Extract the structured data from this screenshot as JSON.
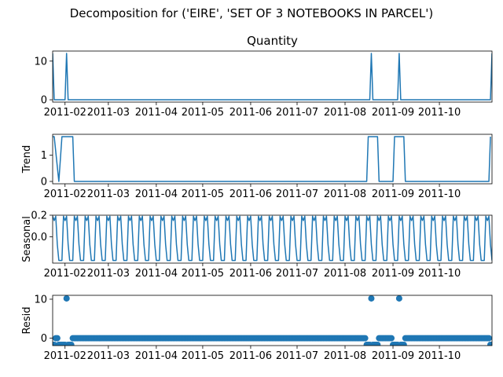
{
  "figure": {
    "suptitle": "Decomposition for ('EIRE', 'SET OF 3 NOTEBOOKS IN PARCEL')",
    "line_color": "#1f77b4"
  },
  "chart_data": [
    {
      "type": "line",
      "title": "Quantity",
      "ylabel": "",
      "xlim": [
        "2011-01-24",
        "2011-11-04"
      ],
      "ylim": [
        -0.6,
        12.6
      ],
      "yticks": [
        0,
        10
      ],
      "xticks": [
        "2011-02",
        "2011-03",
        "2011-04",
        "2011-05",
        "2011-06",
        "2011-07",
        "2011-08",
        "2011-09",
        "2011-10"
      ],
      "series": [
        {
          "points": [
            [
              "2011-01-24",
              12
            ],
            [
              "2011-01-25",
              0
            ],
            [
              "2011-02-01",
              0
            ],
            [
              "2011-02-02",
              12
            ],
            [
              "2011-02-03",
              0
            ],
            [
              "2011-08-17",
              0
            ],
            [
              "2011-08-18",
              12
            ],
            [
              "2011-08-19",
              0
            ],
            [
              "2011-09-04",
              0
            ],
            [
              "2011-09-05",
              12
            ],
            [
              "2011-09-06",
              0
            ],
            [
              "2011-11-03",
              0
            ],
            [
              "2011-11-04",
              12
            ]
          ]
        }
      ]
    },
    {
      "type": "line",
      "title": "",
      "ylabel": "Trend",
      "xlim": [
        "2011-01-24",
        "2011-11-04"
      ],
      "ylim": [
        -0.09,
        1.8
      ],
      "yticks": [
        0,
        1
      ],
      "xticks": [
        "2011-02",
        "2011-03",
        "2011-04",
        "2011-05",
        "2011-06",
        "2011-07",
        "2011-08",
        "2011-09",
        "2011-10"
      ],
      "series": [
        {
          "points": [
            [
              "2011-01-24",
              1.71
            ],
            [
              "2011-01-25",
              1.71
            ],
            [
              "2011-01-28",
              0
            ],
            [
              "2011-01-30",
              1.71
            ],
            [
              "2011-02-06",
              1.71
            ],
            [
              "2011-02-07",
              0
            ],
            [
              "2011-08-15",
              0
            ],
            [
              "2011-08-16",
              1.71
            ],
            [
              "2011-08-22",
              1.71
            ],
            [
              "2011-08-23",
              0
            ],
            [
              "2011-09-01",
              0
            ],
            [
              "2011-09-02",
              1.71
            ],
            [
              "2011-09-08",
              1.71
            ],
            [
              "2011-09-09",
              0
            ],
            [
              "2011-11-02",
              0
            ],
            [
              "2011-11-03",
              1.71
            ]
          ]
        }
      ]
    },
    {
      "type": "line",
      "title": "",
      "ylabel": "Seasonal",
      "xlim": [
        "2011-01-24",
        "2011-11-04"
      ],
      "ylim": [
        -0.245,
        0.2
      ],
      "yticks": [
        0.0,
        0.2
      ],
      "ytick_labels": [
        "0.0",
        "0.2"
      ],
      "xticks": [
        "2011-02",
        "2011-03",
        "2011-04",
        "2011-05",
        "2011-06",
        "2011-07",
        "2011-08",
        "2011-09",
        "2011-10"
      ],
      "period_days": 7,
      "pattern": [
        0.19,
        0.15,
        0.19,
        -0.07,
        -0.22,
        -0.22,
        -0.22
      ],
      "series": [
        {
          "start": "2011-01-24",
          "end": "2011-11-04"
        }
      ]
    },
    {
      "type": "scatter",
      "title": "",
      "ylabel": "Resid",
      "xlim": [
        "2011-01-24",
        "2011-11-04"
      ],
      "ylim": [
        -1.9,
        11.0
      ],
      "yticks": [
        0,
        10
      ],
      "xticks": [
        "2011-02",
        "2011-03",
        "2011-04",
        "2011-05",
        "2011-06",
        "2011-07",
        "2011-08",
        "2011-09",
        "2011-10"
      ],
      "default_value": 0,
      "special_points": [
        [
          "2011-01-24",
          -1.7
        ],
        [
          "2011-01-25",
          -1.7
        ],
        [
          "2011-01-26",
          0
        ],
        [
          "2011-01-28",
          -1.7
        ],
        [
          "2011-01-29",
          -1.7
        ],
        [
          "2011-01-30",
          -1.7
        ],
        [
          "2011-01-31",
          -1.7
        ],
        [
          "2011-02-01",
          -1.7
        ],
        [
          "2011-02-02",
          10.2
        ],
        [
          "2011-02-03",
          -1.7
        ],
        [
          "2011-02-04",
          -1.7
        ],
        [
          "2011-02-05",
          -1.7
        ],
        [
          "2011-08-15",
          -1.7
        ],
        [
          "2011-08-16",
          -1.7
        ],
        [
          "2011-08-17",
          -1.7
        ],
        [
          "2011-08-18",
          10.2
        ],
        [
          "2011-08-19",
          -1.7
        ],
        [
          "2011-08-20",
          -1.7
        ],
        [
          "2011-08-21",
          -1.7
        ],
        [
          "2011-08-22",
          -1.7
        ],
        [
          "2011-09-01",
          -1.7
        ],
        [
          "2011-09-02",
          -1.7
        ],
        [
          "2011-09-03",
          -1.7
        ],
        [
          "2011-09-04",
          -1.7
        ],
        [
          "2011-09-05",
          10.2
        ],
        [
          "2011-09-06",
          -1.7
        ],
        [
          "2011-09-07",
          -1.7
        ],
        [
          "2011-09-08",
          -1.7
        ],
        [
          "2011-11-03",
          -1.7
        ],
        [
          "2011-11-04",
          -1.7
        ]
      ]
    }
  ]
}
